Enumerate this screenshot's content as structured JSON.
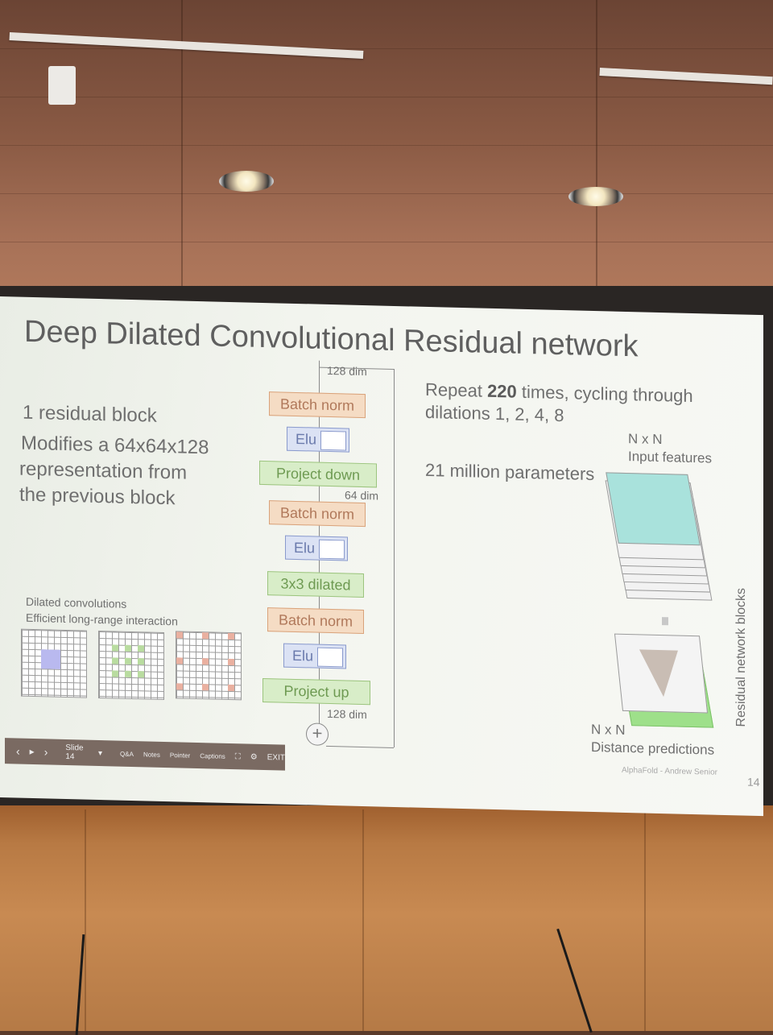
{
  "slide": {
    "title": "Deep Dilated Convolutional Residual network",
    "left": {
      "block": "1 residual block",
      "desc1": "Modifies a 64x64x128",
      "desc2": "representation from",
      "desc3": "the previous block",
      "dilated_title": "Dilated convolutions",
      "dilated_sub": "Efficient long-range interaction"
    },
    "flow": {
      "dim_top": "128 dim",
      "batch_norm_1": "Batch norm",
      "elu_1": "Elu",
      "project_down": "Project down",
      "dim_mid": "64 dim",
      "batch_norm_2": "Batch norm",
      "elu_2": "Elu",
      "dilated": "3x3 dilated",
      "batch_norm_3": "Batch norm",
      "elu_3": "Elu",
      "project_up": "Project up",
      "dim_bottom": "128 dim",
      "plus": "+"
    },
    "right": {
      "repeat_pre": "Repeat ",
      "repeat_num": "220",
      "repeat_post": " times, cycling through",
      "dilations": "dilations 1, 2, 4, 8",
      "params": "21 million parameters",
      "nxn_top": "N x N",
      "input_features": "Input features",
      "vertical": "Residual network blocks",
      "nxn_bottom": "N x N",
      "distance": "Distance predictions",
      "footer": "AlphaFold - Andrew Senior",
      "page": "14"
    },
    "toolbar": {
      "prev": "‹",
      "play": "▸",
      "next": "›",
      "slide_label": "Slide 14",
      "qa": "Q&A",
      "notes": "Notes",
      "pointer": "Pointer",
      "captions": "Captions",
      "exit": "EXIT"
    },
    "colors": {
      "batch_norm": "#f5dcc4",
      "elu": "#dbe2f4",
      "green": "#d8edc8",
      "input_layer": "#a9e2dc",
      "dilated_blue": "#b9b9ef",
      "dilated_green": "#b9dca0",
      "dilated_red": "#eab0a0"
    }
  }
}
